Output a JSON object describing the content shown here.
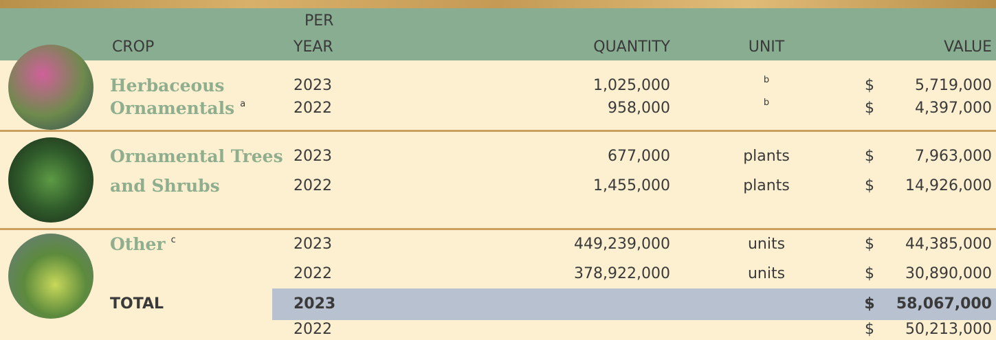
{
  "header": {
    "crop": "CROP",
    "per": "PER",
    "year": "YEAR",
    "quantity": "QUANTITY",
    "unit": "UNIT",
    "value": "VALUE"
  },
  "crops": [
    {
      "name_lines": [
        "Herbaceous",
        "Ornamentals"
      ],
      "note": "a",
      "rows": [
        {
          "year": "2023",
          "quantity": "1,025,000",
          "unit": "b",
          "currency": "$",
          "value": "5,719,000"
        },
        {
          "year": "2022",
          "quantity": "958,000",
          "unit": "b",
          "currency": "$",
          "value": "4,397,000"
        }
      ]
    },
    {
      "name_lines": [
        "Ornamental Trees",
        "and Shrubs"
      ],
      "rows": [
        {
          "year": "2023",
          "quantity": "677,000",
          "unit": "plants",
          "currency": "$",
          "value": "7,963,000"
        },
        {
          "year": "2022",
          "quantity": "1,455,000",
          "unit": "plants",
          "currency": "$",
          "value": "14,926,000"
        }
      ]
    },
    {
      "name_lines": [
        "Other"
      ],
      "note": "c",
      "rows": [
        {
          "year": "2023",
          "quantity": "449,239,000",
          "unit": "units",
          "currency": "$",
          "value": "44,385,000"
        },
        {
          "year": "2022",
          "quantity": "378,922,000",
          "unit": "units",
          "currency": "$",
          "value": "30,890,000"
        }
      ]
    }
  ],
  "total": {
    "label": "TOTAL",
    "rows": [
      {
        "year": "2023",
        "currency": "$",
        "value": "58,067,000"
      },
      {
        "year": "2022",
        "currency": "$",
        "value": "50,213,000"
      }
    ]
  }
}
